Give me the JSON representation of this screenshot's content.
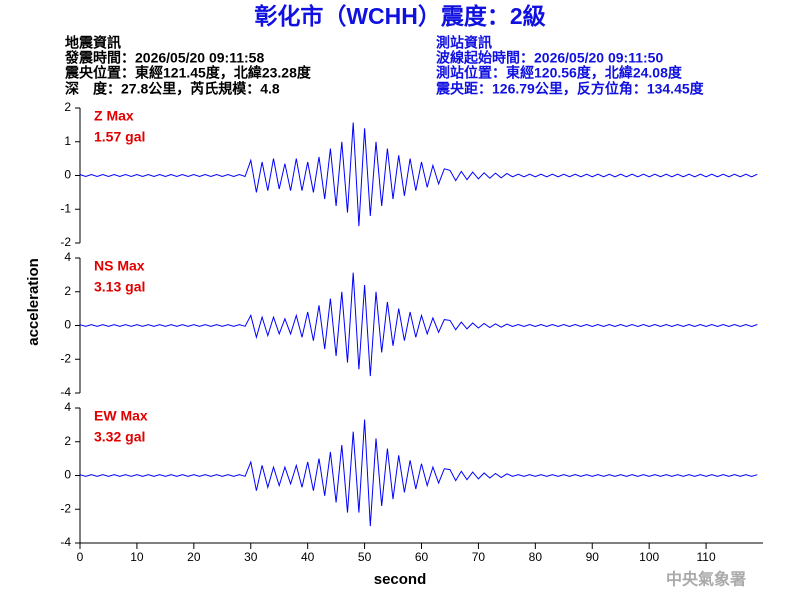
{
  "header": {
    "title": "彰化市（WCHH）震度：2級",
    "left": [
      "地震資訊",
      "發震時間：2026/05/20 09:11:58",
      "震央位置：東經121.45度，北緯23.28度",
      "深　度：27.8公里，芮氏規模：4.8"
    ],
    "right": [
      "測站資訊",
      "波線起始時間：2026/05/20 09:11:50",
      "測站位置：東經120.56度，北緯24.08度",
      "震央距：126.79公里，反方位角：134.45度"
    ]
  },
  "y_label": "acceleration",
  "x_label": "second",
  "watermark": "中央氣象署",
  "chart_data": [
    {
      "type": "line",
      "annotation": [
        "Z Max",
        "1.57 gal"
      ],
      "color": "#0000ff",
      "xlim": [
        0,
        120
      ],
      "ylim": [
        -2,
        2
      ],
      "yticks": [
        -2,
        -1,
        0,
        1,
        2
      ],
      "x": [
        0,
        1,
        2,
        3,
        4,
        5,
        6,
        7,
        8,
        9,
        10,
        11,
        12,
        13,
        14,
        15,
        16,
        17,
        18,
        19,
        20,
        21,
        22,
        23,
        24,
        25,
        26,
        27,
        28,
        29,
        30,
        31,
        32,
        33,
        34,
        35,
        36,
        37,
        38,
        39,
        40,
        41,
        42,
        43,
        44,
        45,
        46,
        47,
        48,
        49,
        50,
        51,
        52,
        53,
        54,
        55,
        56,
        57,
        58,
        59,
        60,
        61,
        62,
        63,
        64,
        65,
        66,
        67,
        68,
        69,
        70,
        71,
        72,
        73,
        74,
        75,
        76,
        77,
        78,
        79,
        80,
        81,
        82,
        83,
        84,
        85,
        86,
        87,
        88,
        89,
        90,
        91,
        92,
        93,
        94,
        95,
        96,
        97,
        98,
        99,
        100,
        101,
        102,
        103,
        104,
        105,
        106,
        107,
        108,
        109,
        110,
        111,
        112,
        113,
        114,
        115,
        116,
        117,
        118,
        119
      ],
      "values": [
        0.03,
        -0.03,
        0.03,
        -0.03,
        0.03,
        -0.03,
        0.03,
        -0.03,
        0.03,
        -0.03,
        0.03,
        -0.03,
        0.03,
        -0.03,
        0.03,
        -0.03,
        0.03,
        -0.03,
        0.03,
        -0.03,
        0.03,
        -0.03,
        0.03,
        -0.03,
        0.03,
        -0.03,
        0.03,
        -0.03,
        0.03,
        -0.03,
        0.45,
        -0.5,
        0.4,
        -0.45,
        0.5,
        -0.4,
        0.35,
        -0.45,
        0.5,
        -0.45,
        0.4,
        -0.5,
        0.55,
        -0.7,
        0.8,
        -0.9,
        1.0,
        -1.1,
        1.57,
        -1.5,
        1.4,
        -1.2,
        1.0,
        -0.9,
        0.8,
        -0.7,
        0.6,
        -0.6,
        0.5,
        -0.45,
        0.4,
        -0.35,
        0.3,
        -0.25,
        0.2,
        0.15,
        -0.15,
        0.12,
        -0.12,
        0.1,
        -0.1,
        0.08,
        -0.08,
        0.07,
        -0.07,
        0.06,
        -0.04,
        0.04,
        -0.04,
        0.04,
        -0.04,
        0.04,
        -0.04,
        0.04,
        -0.04,
        0.04,
        -0.04,
        0.04,
        -0.04,
        0.04,
        -0.04,
        0.04,
        -0.04,
        0.04,
        -0.04,
        0.04,
        -0.04,
        0.04,
        -0.04,
        0.04,
        -0.04,
        0.04,
        -0.04,
        0.04,
        -0.04,
        0.04,
        -0.04,
        0.04,
        -0.04,
        0.04,
        -0.04,
        0.04,
        -0.04,
        0.04,
        -0.04,
        0.04,
        -0.04,
        0.04,
        -0.04,
        0.04
      ]
    },
    {
      "type": "line",
      "annotation": [
        "NS Max",
        "3.13 gal"
      ],
      "color": "#0000ff",
      "xlim": [
        0,
        120
      ],
      "ylim": [
        -4,
        4
      ],
      "yticks": [
        -4,
        -2,
        0,
        2,
        4
      ],
      "x": [
        0,
        1,
        2,
        3,
        4,
        5,
        6,
        7,
        8,
        9,
        10,
        11,
        12,
        13,
        14,
        15,
        16,
        17,
        18,
        19,
        20,
        21,
        22,
        23,
        24,
        25,
        26,
        27,
        28,
        29,
        30,
        31,
        32,
        33,
        34,
        35,
        36,
        37,
        38,
        39,
        40,
        41,
        42,
        43,
        44,
        45,
        46,
        47,
        48,
        49,
        50,
        51,
        52,
        53,
        54,
        55,
        56,
        57,
        58,
        59,
        60,
        61,
        62,
        63,
        64,
        65,
        66,
        67,
        68,
        69,
        70,
        71,
        72,
        73,
        74,
        75,
        76,
        77,
        78,
        79,
        80,
        81,
        82,
        83,
        84,
        85,
        86,
        87,
        88,
        89,
        90,
        91,
        92,
        93,
        94,
        95,
        96,
        97,
        98,
        99,
        100,
        101,
        102,
        103,
        104,
        105,
        106,
        107,
        108,
        109,
        110,
        111,
        112,
        113,
        114,
        115,
        116,
        117,
        118,
        119
      ],
      "values": [
        0.05,
        -0.05,
        0.05,
        -0.05,
        0.05,
        -0.05,
        0.05,
        -0.05,
        0.05,
        -0.05,
        0.05,
        -0.05,
        0.05,
        -0.05,
        0.05,
        -0.05,
        0.05,
        -0.05,
        0.05,
        -0.05,
        0.05,
        -0.05,
        0.05,
        -0.05,
        0.05,
        -0.05,
        0.05,
        -0.05,
        0.05,
        -0.05,
        0.6,
        -0.7,
        0.5,
        -0.6,
        0.5,
        -0.5,
        0.4,
        -0.5,
        0.6,
        -0.7,
        0.8,
        -0.9,
        1.2,
        -1.4,
        1.6,
        -1.8,
        2.0,
        -2.2,
        3.13,
        -2.6,
        2.4,
        -3.0,
        2.0,
        -1.6,
        1.4,
        -1.2,
        1.0,
        -0.9,
        0.8,
        -0.7,
        0.6,
        -0.5,
        0.45,
        -0.4,
        0.35,
        0.3,
        -0.25,
        0.2,
        -0.2,
        0.15,
        -0.15,
        0.12,
        -0.12,
        0.1,
        -0.1,
        0.08,
        -0.06,
        0.06,
        -0.06,
        0.06,
        -0.06,
        0.06,
        -0.06,
        0.06,
        -0.06,
        0.06,
        -0.06,
        0.06,
        -0.06,
        0.06,
        -0.06,
        0.06,
        -0.06,
        0.06,
        -0.06,
        0.06,
        -0.06,
        0.06,
        -0.06,
        0.06,
        -0.06,
        0.06,
        -0.06,
        0.06,
        -0.06,
        0.06,
        -0.06,
        0.06,
        -0.06,
        0.06,
        -0.06,
        0.06,
        -0.06,
        0.06,
        -0.06,
        0.06,
        -0.06,
        0.06,
        -0.06,
        0.06
      ]
    },
    {
      "type": "line",
      "annotation": [
        "EW Max",
        "3.32 gal"
      ],
      "color": "#0000ff",
      "xlim": [
        0,
        120
      ],
      "ylim": [
        -4,
        4
      ],
      "yticks": [
        -4,
        -2,
        0,
        2,
        4
      ],
      "xticks": [
        0,
        10,
        20,
        30,
        40,
        50,
        60,
        70,
        80,
        90,
        100,
        110
      ],
      "x": [
        0,
        1,
        2,
        3,
        4,
        5,
        6,
        7,
        8,
        9,
        10,
        11,
        12,
        13,
        14,
        15,
        16,
        17,
        18,
        19,
        20,
        21,
        22,
        23,
        24,
        25,
        26,
        27,
        28,
        29,
        30,
        31,
        32,
        33,
        34,
        35,
        36,
        37,
        38,
        39,
        40,
        41,
        42,
        43,
        44,
        45,
        46,
        47,
        48,
        49,
        50,
        51,
        52,
        53,
        54,
        55,
        56,
        57,
        58,
        59,
        60,
        61,
        62,
        63,
        64,
        65,
        66,
        67,
        68,
        69,
        70,
        71,
        72,
        73,
        74,
        75,
        76,
        77,
        78,
        79,
        80,
        81,
        82,
        83,
        84,
        85,
        86,
        87,
        88,
        89,
        90,
        91,
        92,
        93,
        94,
        95,
        96,
        97,
        98,
        99,
        100,
        101,
        102,
        103,
        104,
        105,
        106,
        107,
        108,
        109,
        110,
        111,
        112,
        113,
        114,
        115,
        116,
        117,
        118,
        119
      ],
      "values": [
        0.05,
        -0.05,
        0.05,
        -0.05,
        0.05,
        -0.05,
        0.05,
        -0.05,
        0.05,
        -0.05,
        0.05,
        -0.05,
        0.05,
        -0.05,
        0.05,
        -0.05,
        0.05,
        -0.05,
        0.05,
        -0.05,
        0.05,
        -0.05,
        0.05,
        -0.05,
        0.05,
        -0.05,
        0.05,
        -0.05,
        0.05,
        -0.05,
        0.8,
        -0.9,
        0.6,
        -0.7,
        0.5,
        -0.6,
        0.5,
        -0.5,
        0.6,
        -0.7,
        0.8,
        -0.9,
        1.0,
        -1.2,
        1.4,
        -1.6,
        1.8,
        -2.2,
        2.6,
        -2.2,
        3.32,
        -3.0,
        2.2,
        -1.8,
        1.6,
        -1.4,
        1.2,
        -1.0,
        0.9,
        -0.8,
        0.7,
        -0.6,
        0.5,
        -0.45,
        0.4,
        0.35,
        -0.3,
        0.25,
        -0.25,
        0.2,
        -0.2,
        0.15,
        -0.15,
        0.12,
        -0.12,
        0.1,
        -0.05,
        0.05,
        -0.05,
        0.05,
        -0.05,
        0.05,
        -0.05,
        0.05,
        -0.05,
        0.05,
        -0.05,
        0.05,
        -0.05,
        0.05,
        -0.05,
        0.05,
        -0.05,
        0.05,
        -0.05,
        0.05,
        -0.05,
        0.05,
        -0.05,
        0.05,
        -0.05,
        0.05,
        -0.05,
        0.05,
        -0.05,
        0.05,
        -0.05,
        0.05,
        -0.05,
        0.05,
        -0.05,
        0.05,
        -0.05,
        0.05,
        -0.05,
        0.05,
        -0.05,
        0.05,
        -0.05,
        0.05
      ]
    }
  ]
}
